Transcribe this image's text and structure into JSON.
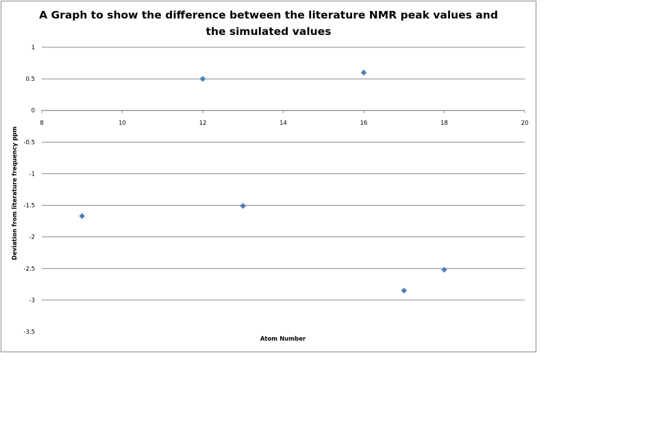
{
  "chart_data": {
    "type": "scatter",
    "title_line1": "A Graph to show the difference between the literature NMR peak values and",
    "title_line2": "the simulated values",
    "xlabel": "Atom Number",
    "ylabel": "Deviation from literature frequency ppm",
    "xlim": [
      8,
      20
    ],
    "ylim": [
      -3.5,
      1
    ],
    "x_ticks": [
      "8",
      "10",
      "12",
      "14",
      "16",
      "18",
      "20"
    ],
    "y_ticks": [
      "1",
      "0.5",
      "0",
      "-0.5",
      "-1",
      "-1.5",
      "-2",
      "-2.5",
      "-3",
      "-3.5"
    ],
    "grid": "horizontal",
    "marker_color": "#4F81BD",
    "series": [
      {
        "points": [
          {
            "x": 9,
            "y": -1.67
          },
          {
            "x": 12,
            "y": 0.5
          },
          {
            "x": 13,
            "y": -1.51
          },
          {
            "x": 16,
            "y": 0.6
          },
          {
            "x": 17,
            "y": -2.85
          },
          {
            "x": 18,
            "y": -2.52
          }
        ]
      }
    ]
  }
}
